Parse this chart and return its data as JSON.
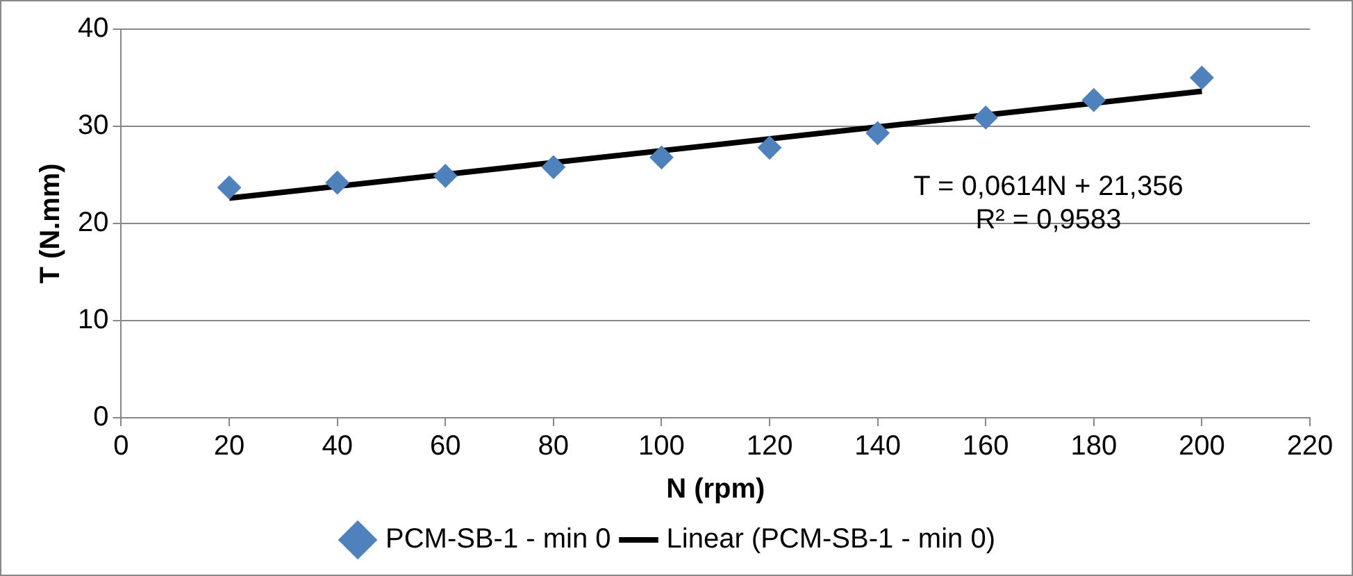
{
  "chart_data": {
    "type": "scatter",
    "xlabel": "N (rpm)",
    "ylabel": "T (N.mm)",
    "x": [
      20,
      40,
      60,
      80,
      100,
      120,
      140,
      160,
      180,
      200
    ],
    "series": [
      {
        "name": "PCM-SB-1 - min 0",
        "color": "#4f81bd",
        "marker": "diamond",
        "values": [
          23.7,
          24.2,
          24.9,
          25.8,
          26.8,
          27.8,
          29.3,
          30.9,
          32.7,
          35.0
        ]
      },
      {
        "name": "Linear (PCM-SB-1 - min 0)",
        "type": "line",
        "color": "#000000",
        "marker": "none",
        "line_style": "solid",
        "x": [
          20,
          200
        ],
        "values": [
          22.6,
          33.6
        ]
      }
    ],
    "xlim": [
      0,
      220
    ],
    "xticks": [
      0,
      20,
      40,
      60,
      80,
      100,
      120,
      140,
      160,
      180,
      200,
      220
    ],
    "ylim": [
      0,
      40
    ],
    "yticks": [
      0,
      10,
      20,
      30,
      40
    ],
    "grid": "y",
    "legend": "bottom",
    "annotations": [
      "T = 0,0614N + 21,356\nR² = 0,9583"
    ]
  }
}
